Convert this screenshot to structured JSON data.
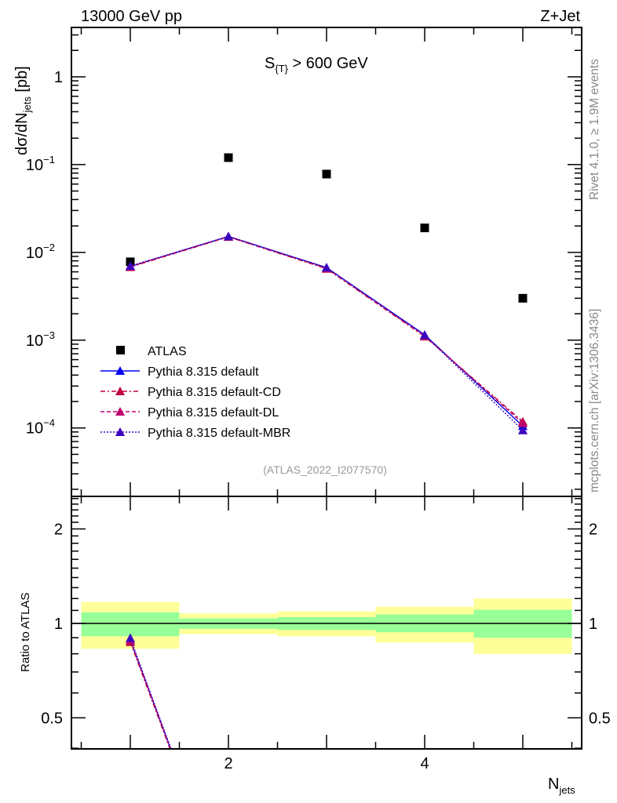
{
  "header": {
    "left": "13000 GeV pp",
    "right": "Z+Jet"
  },
  "side_text": {
    "rivet": "Rivet 4.1.0, ≥ 1.9M events",
    "mcplots": "mcplots.cern.ch [arXiv:1306.3436]"
  },
  "analysis_id": "(ATLAS_2022_I2077570)",
  "colors": {
    "atlas": "#000000",
    "default": "#0000ee",
    "cd": "#c0003c",
    "dl": "#c0006a",
    "mbr": "#3c00c0",
    "band_inner": "#99ff99",
    "band_outer": "#ffff99"
  },
  "chart_data": [
    {
      "type": "scatter",
      "panel": "main",
      "title": "S_{T} > 600 GeV",
      "title_main": "S",
      "title_sub": "{T}",
      "title_rest": " > 600 GeV",
      "ylabel": "dσ/dN",
      "ylabel_sub": "jets",
      "ylabel_unit": " [pb]",
      "yscale": "log",
      "ylim": [
        1.66e-05,
        3.65
      ],
      "xlim": [
        0.4,
        5.6
      ],
      "ytick_labels": [
        {
          "value": 1,
          "base": "1",
          "exp": ""
        },
        {
          "value": 0.1,
          "base": "10",
          "exp": "−1"
        },
        {
          "value": 0.01,
          "base": "10",
          "exp": "−2"
        },
        {
          "value": 0.001,
          "base": "10",
          "exp": "−3"
        },
        {
          "value": 0.0001,
          "base": "10",
          "exp": "−4"
        }
      ],
      "legend_position": "lower-left",
      "x": [
        1,
        2,
        3,
        4,
        5
      ],
      "series": [
        {
          "name": "ATLAS",
          "key": "atlas",
          "marker": "square",
          "dash": "",
          "values": [
            0.0078,
            0.12,
            0.078,
            0.019,
            0.003
          ]
        },
        {
          "name": "Pythia 8.315 default",
          "key": "default",
          "marker": "triangle",
          "dash": "",
          "values": [
            0.0069,
            0.0152,
            0.0067,
            0.00115,
            0.000105
          ]
        },
        {
          "name": "Pythia 8.315 default-CD",
          "key": "cd",
          "marker": "triangle",
          "dash": "6,3,2,3",
          "values": [
            0.0068,
            0.015,
            0.0065,
            0.0011,
            0.000118
          ]
        },
        {
          "name": "Pythia 8.315 default-DL",
          "key": "dl",
          "marker": "triangle",
          "dash": "5,3",
          "values": [
            0.0069,
            0.0151,
            0.0066,
            0.00112,
            0.000113
          ]
        },
        {
          "name": "Pythia 8.315 default-MBR",
          "key": "mbr",
          "marker": "triangle",
          "dash": "2,2",
          "values": [
            0.007,
            0.0152,
            0.0067,
            0.00114,
            9.4e-05
          ]
        }
      ]
    },
    {
      "type": "line",
      "panel": "ratio",
      "ylabel": "Ratio to ATLAS",
      "xlabel": "N",
      "xlabel_sub": "jets",
      "yscale": "log",
      "ylim": [
        0.398,
        2.54
      ],
      "xlim": [
        0.4,
        5.6
      ],
      "ytick_labels": [
        "0.5",
        "1",
        "2"
      ],
      "ytick_values": [
        0.5,
        1,
        2
      ],
      "xtick_labels": [
        "2",
        "4"
      ],
      "xtick_values": [
        2,
        4
      ],
      "bands": [
        {
          "xlo": 0.5,
          "xhi": 1.5,
          "outer": [
            0.83,
            1.17
          ],
          "inner": [
            0.91,
            1.085
          ]
        },
        {
          "xlo": 1.5,
          "xhi": 2.5,
          "outer": [
            0.925,
            1.076
          ],
          "inner": [
            0.96,
            1.037
          ]
        },
        {
          "xlo": 2.5,
          "xhi": 3.5,
          "outer": [
            0.91,
            1.092
          ],
          "inner": [
            0.953,
            1.047
          ]
        },
        {
          "xlo": 3.5,
          "xhi": 4.5,
          "outer": [
            0.87,
            1.13
          ],
          "inner": [
            0.937,
            1.067
          ]
        },
        {
          "xlo": 4.5,
          "xhi": 5.5,
          "outer": [
            0.8,
            1.2
          ],
          "inner": [
            0.9,
            1.105
          ]
        }
      ]
    }
  ]
}
